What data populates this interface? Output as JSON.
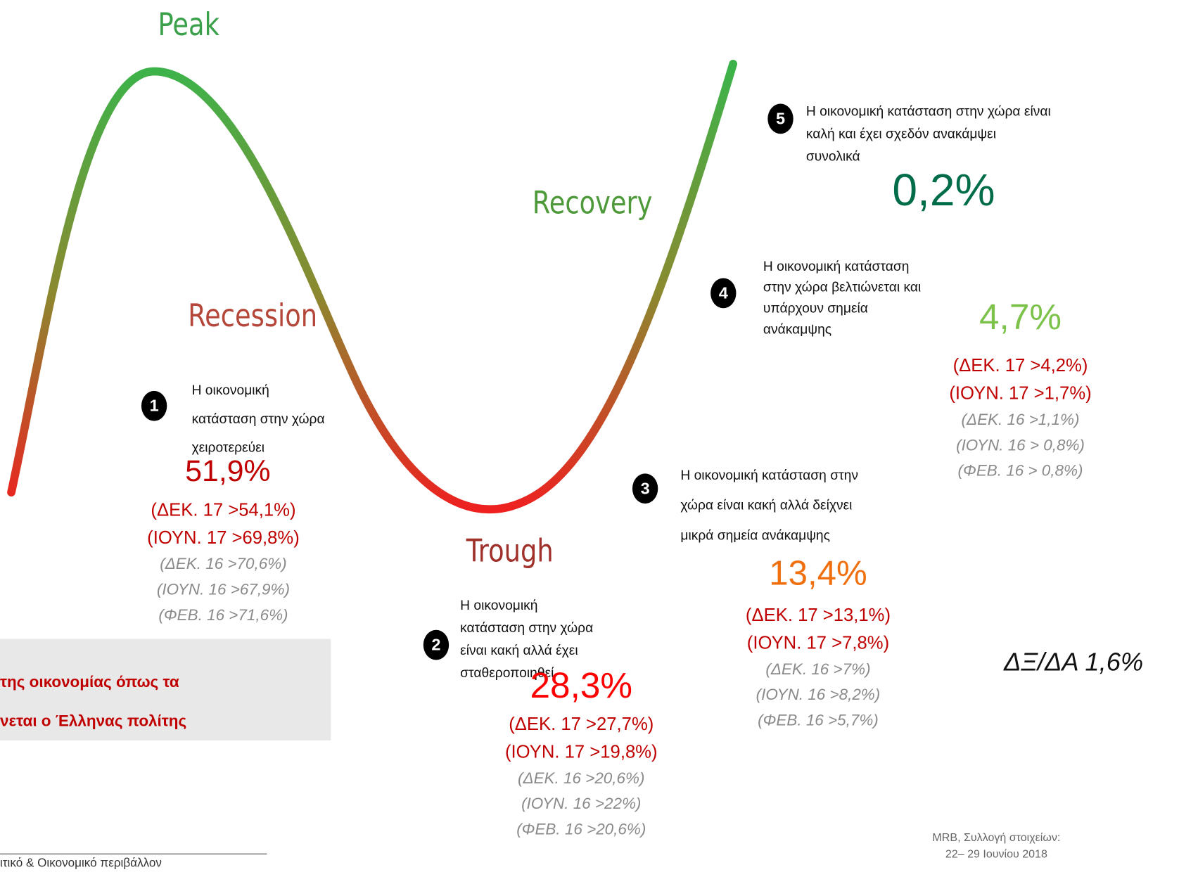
{
  "phases": {
    "peak": "Peak",
    "recovery": "Recovery",
    "recession": "Recession",
    "trough": "Trough"
  },
  "stages": [
    {
      "number": "1",
      "description": [
        "Η οικονομική",
        "κατάσταση στην χώρα",
        "χειροτερεύει"
      ],
      "value": "51,9%",
      "current_comparisons": [
        "(ΔΕΚ. 17 >54,1%)",
        "(ΙΟΥΝ. 17 >69,8%)"
      ],
      "past_comparisons": [
        "(ΔΕΚ. 16 >70,6%)",
        "(ΙΟΥΝ. 16 >67,9%)",
        "(ΦΕΒ. 16 >71,6%)"
      ]
    },
    {
      "number": "2",
      "description": [
        "Η οικονομική",
        "κατάσταση στην χώρα",
        "είναι κακή αλλά έχει",
        "σταθεροποιηθεί"
      ],
      "value": "28,3%",
      "current_comparisons": [
        "(ΔΕΚ. 17 >27,7%)",
        "(ΙΟΥΝ. 17 >19,8%)"
      ],
      "past_comparisons": [
        "(ΔΕΚ. 16 >20,6%)",
        "(ΙΟΥΝ. 16 >22%)",
        "(ΦΕΒ. 16 >20,6%)"
      ]
    },
    {
      "number": "3",
      "description": [
        "Η οικονομική κατάσταση στην",
        "χώρα είναι κακή αλλά δείχνει",
        "μικρά σημεία ανάκαμψης"
      ],
      "value": "13,4%",
      "current_comparisons": [
        "(ΔΕΚ. 17 >13,1%)",
        "(ΙΟΥΝ. 17 >7,8%)"
      ],
      "past_comparisons": [
        "(ΔΕΚ. 16 >7%)",
        "(ΙΟΥΝ. 16 >8,2%)",
        "(ΦΕΒ. 16 >5,7%)"
      ]
    },
    {
      "number": "4",
      "description": [
        "Η οικονομική κατάσταση",
        "στην χώρα βελτιώνεται  και",
        "υπάρχουν σημεία",
        "ανάκαμψης"
      ],
      "value": "4,7%",
      "current_comparisons": [
        "(ΔΕΚ. 17 >4,2%)",
        "(ΙΟΥΝ. 17 >1,7%)"
      ],
      "past_comparisons": [
        "(ΔΕΚ. 16 >1,1%)",
        "(ΙΟΥΝ. 16 > 0,8%)",
        "(ΦΕΒ. 16 > 0,8%)"
      ]
    },
    {
      "number": "5",
      "description": [
        "Η οικονομική κατάσταση στην χώρα είναι",
        "καλή και έχει σχεδόν ανακάμψει",
        "συνολικά"
      ],
      "value": "0,2%",
      "current_comparisons": [],
      "past_comparisons": []
    }
  ],
  "dk_na": "ΔΞ/ΔΑ 1,6%",
  "title_box": [
    "της οικονομίας όπως τα",
    "νεται ο Έλληνας πολίτης"
  ],
  "footer": {
    "section": "ιτικό & Οικονομικό περιβάλλον",
    "source": [
      "MRB, Συλλογή στοιχείων:",
      "22– 29 Ιουνίου 2018"
    ]
  }
}
